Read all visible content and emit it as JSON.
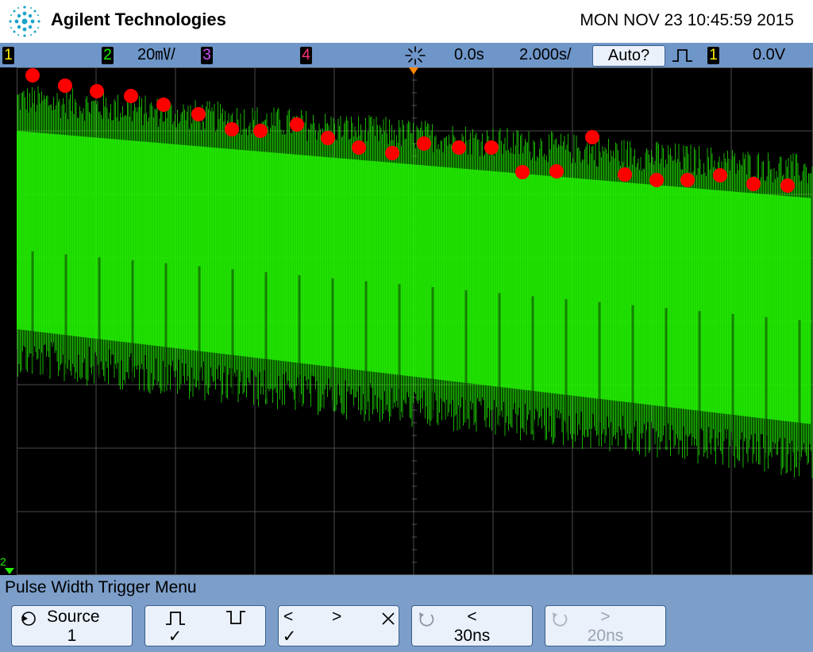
{
  "header": {
    "brand": "Agilent Technologies",
    "datetime": "MON NOV 23 10:45:59 2015"
  },
  "statusbar": {
    "ch1_label": "1",
    "ch2_label": "2",
    "ch2_scale": "20㎷/",
    "ch3_label": "3",
    "ch4_label": "4",
    "delay": "0.0s",
    "timebase": "2.000s/",
    "trigger_mode": "Auto?",
    "trigger_source": "1",
    "trigger_level": "0.0V"
  },
  "waveform": {
    "channel": "2",
    "color": "#22ee00",
    "peak_markers": 24,
    "peak_marker_color": "#ff0000"
  },
  "menu": {
    "title": "Pulse Width Trigger Menu",
    "softkeys": [
      {
        "name": "Source",
        "value": "1"
      },
      {
        "name": "polarity",
        "value": "✓"
      },
      {
        "name": "qualifier",
        "value": "✓"
      },
      {
        "name": "<",
        "value": "30ns"
      },
      {
        "name": ">",
        "value": "20ns"
      }
    ]
  },
  "colors": {
    "statusbar": "#6f96c9",
    "menubar": "#7c9ec9",
    "ch1": "#ffee00",
    "ch2": "#22ee00",
    "ch3": "#cc55ff",
    "ch4": "#ff3377",
    "marker": "#ff0000"
  }
}
